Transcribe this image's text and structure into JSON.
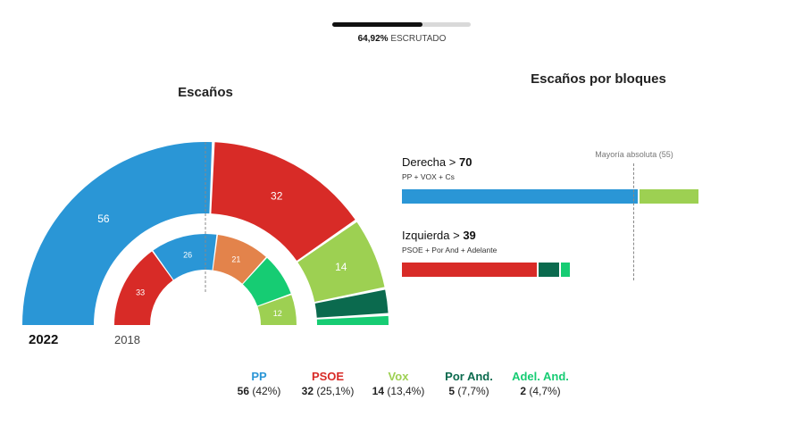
{
  "progress": {
    "value_pct": 64.92,
    "percent_text": "64,92%",
    "label": " ESCRUTADO"
  },
  "titles": {
    "seats": "Escaños",
    "blocks": "Escaños por bloques"
  },
  "colors": {
    "PP": "#2a96d6",
    "PSOE": "#d82b27",
    "Vox": "#9dd052",
    "PorAnd": "#0b6a4e",
    "AdelAnd": "#16cc73"
  },
  "chart_data": [
    {
      "type": "pie",
      "subtype": "hemicycle",
      "series": [
        {
          "name": "2022",
          "categories": [
            "PP",
            "PSOE",
            "Vox",
            "Por And.",
            "Adel. And."
          ],
          "values": [
            56,
            32,
            14,
            5,
            2
          ],
          "value_labels": [
            "56",
            "32",
            "14",
            "",
            ""
          ]
        },
        {
          "name": "2018",
          "categories": [
            "PSOE",
            "PP",
            "Cs",
            "Adelante",
            "Vox"
          ],
          "values": [
            33,
            26,
            21,
            17,
            12
          ],
          "value_labels": [
            "33",
            "26",
            "21",
            "",
            "12"
          ]
        }
      ],
      "majority_marker": true
    },
    {
      "type": "bar",
      "orientation": "horizontal",
      "stacked": true,
      "title": "Escaños por bloques",
      "blocks": [
        {
          "name": "Derecha",
          "total": 70,
          "subtitle": "PP + VOX + Cs",
          "segments": [
            {
              "party": "PP",
              "value": 56,
              "color": "#2a96d6"
            },
            {
              "party": "Vox",
              "value": 14,
              "color": "#9dd052"
            }
          ]
        },
        {
          "name": "Izquierda",
          "total": 39,
          "subtitle": "PSOE + Por And + Adelante",
          "segments": [
            {
              "party": "PSOE",
              "value": 32,
              "color": "#d82b27"
            },
            {
              "party": "Por And.",
              "value": 5,
              "color": "#0b6a4e"
            },
            {
              "party": "Adel. And.",
              "value": 2,
              "color": "#16cc73"
            }
          ]
        }
      ],
      "majority": {
        "value": 55,
        "label": "Mayoría absoluta (55)"
      }
    }
  ],
  "years": {
    "current": "2022",
    "previous": "2018"
  },
  "legend": [
    {
      "name": "PP",
      "seats": "56",
      "pct": "(42%)",
      "color": "#2a96d6"
    },
    {
      "name": "PSOE",
      "seats": "32",
      "pct": "(25,1%)",
      "color": "#d82b27"
    },
    {
      "name": "Vox",
      "seats": "14",
      "pct": "(13,4%)",
      "color": "#9dd052"
    },
    {
      "name": "Por And.",
      "seats": "5",
      "pct": "(7,7%)",
      "color": "#0b6a4e"
    },
    {
      "name": "Adel. And.",
      "seats": "2",
      "pct": "(4,7%)",
      "color": "#16cc73"
    }
  ]
}
